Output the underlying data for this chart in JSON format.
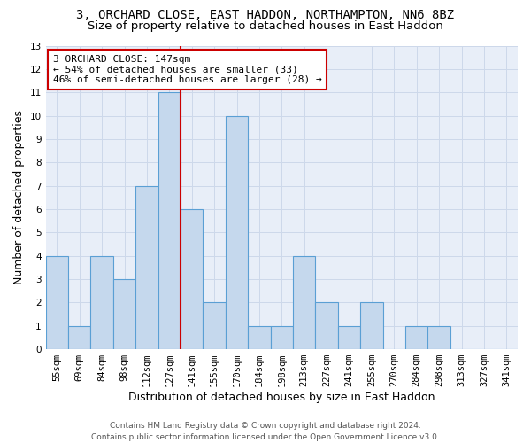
{
  "title1": "3, ORCHARD CLOSE, EAST HADDON, NORTHAMPTON, NN6 8BZ",
  "title2": "Size of property relative to detached houses in East Haddon",
  "xlabel": "Distribution of detached houses by size in East Haddon",
  "ylabel": "Number of detached properties",
  "categories": [
    "55sqm",
    "69sqm",
    "84sqm",
    "98sqm",
    "112sqm",
    "127sqm",
    "141sqm",
    "155sqm",
    "170sqm",
    "184sqm",
    "198sqm",
    "213sqm",
    "227sqm",
    "241sqm",
    "255sqm",
    "270sqm",
    "284sqm",
    "298sqm",
    "313sqm",
    "327sqm",
    "341sqm"
  ],
  "values": [
    4,
    1,
    4,
    3,
    7,
    11,
    6,
    2,
    10,
    1,
    1,
    4,
    2,
    1,
    2,
    0,
    1,
    1,
    0,
    0,
    0
  ],
  "bar_color": "#c5d8ed",
  "bar_edge_color": "#5a9fd4",
  "vline_x": 5.5,
  "vline_color": "#cc0000",
  "annotation_line1": "3 ORCHARD CLOSE: 147sqm",
  "annotation_line2": "← 54% of detached houses are smaller (33)",
  "annotation_line3": "46% of semi-detached houses are larger (28) →",
  "annotation_box_color": "white",
  "annotation_box_edge": "#cc0000",
  "ylim": [
    0,
    13
  ],
  "yticks": [
    0,
    1,
    2,
    3,
    4,
    5,
    6,
    7,
    8,
    9,
    10,
    11,
    12,
    13
  ],
  "grid_color": "#cdd8ea",
  "background_color": "#e8eef8",
  "footer1": "Contains HM Land Registry data © Crown copyright and database right 2024.",
  "footer2": "Contains public sector information licensed under the Open Government Licence v3.0.",
  "title1_fontsize": 10,
  "title2_fontsize": 9.5,
  "axis_label_fontsize": 9,
  "tick_fontsize": 7.5,
  "annotation_fontsize": 8,
  "footer_fontsize": 6.5
}
